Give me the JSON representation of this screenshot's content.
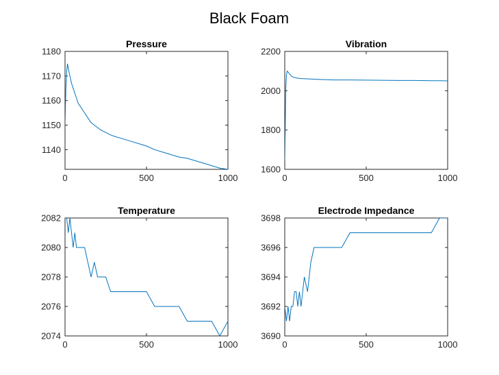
{
  "figure_title": "Black Foam",
  "colors": {
    "series": "#0072BD",
    "axis": "#262626",
    "background": "#ffffff"
  },
  "chart_data": [
    {
      "type": "line",
      "title": "Pressure",
      "xlabel": "",
      "ylabel": "",
      "xlim": [
        0,
        1000
      ],
      "ylim": [
        1132,
        1180
      ],
      "xticks": [
        0,
        500,
        1000
      ],
      "yticks": [
        1140,
        1150,
        1160,
        1170,
        1180
      ],
      "grid": false,
      "series": [
        {
          "x": [
            0,
            5,
            10,
            15,
            20,
            30,
            40,
            50,
            60,
            70,
            80,
            90,
            100,
            120,
            140,
            160,
            180,
            200,
            220,
            250,
            280,
            300,
            350,
            400,
            450,
            500,
            550,
            600,
            650,
            700,
            750,
            800,
            850,
            900,
            950,
            1000
          ],
          "y": [
            1150,
            1165,
            1172,
            1175,
            1173,
            1170,
            1167,
            1165,
            1163,
            1161,
            1159,
            1158,
            1157,
            1155,
            1153,
            1151,
            1150,
            1149,
            1148,
            1147,
            1146,
            1145.5,
            1144.5,
            1143.5,
            1142.5,
            1141.5,
            1140,
            1139,
            1138,
            1137,
            1136.5,
            1135.5,
            1134.5,
            1133.5,
            1132.5,
            1132
          ]
        }
      ]
    },
    {
      "type": "line",
      "title": "Vibration",
      "xlabel": "",
      "ylabel": "",
      "xlim": [
        0,
        1000
      ],
      "ylim": [
        1600,
        2200
      ],
      "xticks": [
        0,
        500,
        1000
      ],
      "yticks": [
        1600,
        1800,
        2000,
        2200
      ],
      "grid": false,
      "series": [
        {
          "x": [
            0,
            3,
            6,
            10,
            15,
            20,
            30,
            40,
            50,
            70,
            100,
            150,
            200,
            300,
            400,
            500,
            600,
            700,
            800,
            900,
            950,
            1000
          ],
          "y": [
            1650,
            1800,
            2000,
            2080,
            2100,
            2095,
            2085,
            2075,
            2070,
            2065,
            2062,
            2060,
            2058,
            2055,
            2055,
            2054,
            2053,
            2052,
            2052,
            2051,
            2051,
            2050
          ]
        }
      ]
    },
    {
      "type": "line",
      "title": "Temperature",
      "xlabel": "",
      "ylabel": "",
      "xlim": [
        0,
        1000
      ],
      "ylim": [
        2074,
        2082
      ],
      "xticks": [
        0,
        500,
        1000
      ],
      "yticks": [
        2074,
        2076,
        2078,
        2080,
        2082
      ],
      "grid": false,
      "series": [
        {
          "x": [
            0,
            10,
            20,
            30,
            40,
            50,
            60,
            70,
            80,
            90,
            100,
            120,
            140,
            160,
            180,
            200,
            220,
            250,
            280,
            300,
            350,
            400,
            450,
            500,
            550,
            600,
            650,
            700,
            750,
            800,
            850,
            900,
            950,
            1000
          ],
          "y": [
            2082,
            2082,
            2081,
            2082,
            2081,
            2080,
            2081,
            2080,
            2080,
            2080,
            2080,
            2080,
            2079,
            2078,
            2079,
            2078,
            2078,
            2078,
            2077,
            2077,
            2077,
            2077,
            2077,
            2077,
            2076,
            2076,
            2076,
            2076,
            2075,
            2075,
            2075,
            2075,
            2074,
            2075
          ]
        }
      ]
    },
    {
      "type": "line",
      "title": "Electrode Impedance",
      "xlabel": "",
      "ylabel": "",
      "xlim": [
        0,
        1000
      ],
      "ylim": [
        3690,
        3698
      ],
      "xticks": [
        0,
        500,
        1000
      ],
      "yticks": [
        3690,
        3692,
        3694,
        3696,
        3698
      ],
      "grid": false,
      "series": [
        {
          "x": [
            0,
            10,
            20,
            30,
            40,
            50,
            60,
            70,
            80,
            90,
            100,
            120,
            140,
            160,
            180,
            200,
            250,
            300,
            350,
            400,
            450,
            500,
            550,
            600,
            650,
            700,
            750,
            800,
            850,
            900,
            950,
            1000
          ],
          "y": [
            3692,
            3691,
            3692,
            3691,
            3692,
            3692,
            3693,
            3693,
            3692,
            3693,
            3692,
            3694,
            3693,
            3695,
            3696,
            3696,
            3696,
            3696,
            3696,
            3697,
            3697,
            3697,
            3697,
            3697,
            3697,
            3697,
            3697,
            3697,
            3697,
            3697,
            3698,
            3698
          ]
        }
      ]
    }
  ]
}
